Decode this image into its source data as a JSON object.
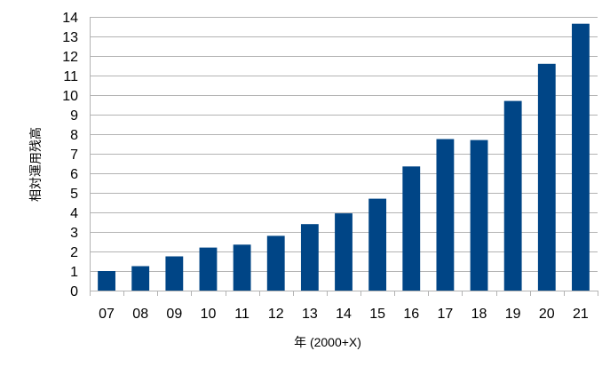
{
  "chart_data": {
    "type": "bar",
    "title": "",
    "xlabel": "年 (2000+X)",
    "ylabel": "相対運用残高",
    "categories": [
      "07",
      "08",
      "09",
      "10",
      "11",
      "12",
      "13",
      "14",
      "15",
      "16",
      "17",
      "18",
      "19",
      "20",
      "21"
    ],
    "values": [
      1.0,
      1.25,
      1.75,
      2.2,
      2.35,
      2.8,
      3.4,
      3.95,
      4.7,
      6.35,
      7.75,
      7.7,
      9.7,
      11.6,
      13.65
    ],
    "ylim": [
      0,
      14
    ],
    "yticks": [
      0,
      1,
      2,
      3,
      4,
      5,
      6,
      7,
      8,
      9,
      10,
      11,
      12,
      13,
      14
    ],
    "grid": true,
    "legend": "none",
    "bar_color": "#004586",
    "grid_color": "#b3b3b3"
  }
}
